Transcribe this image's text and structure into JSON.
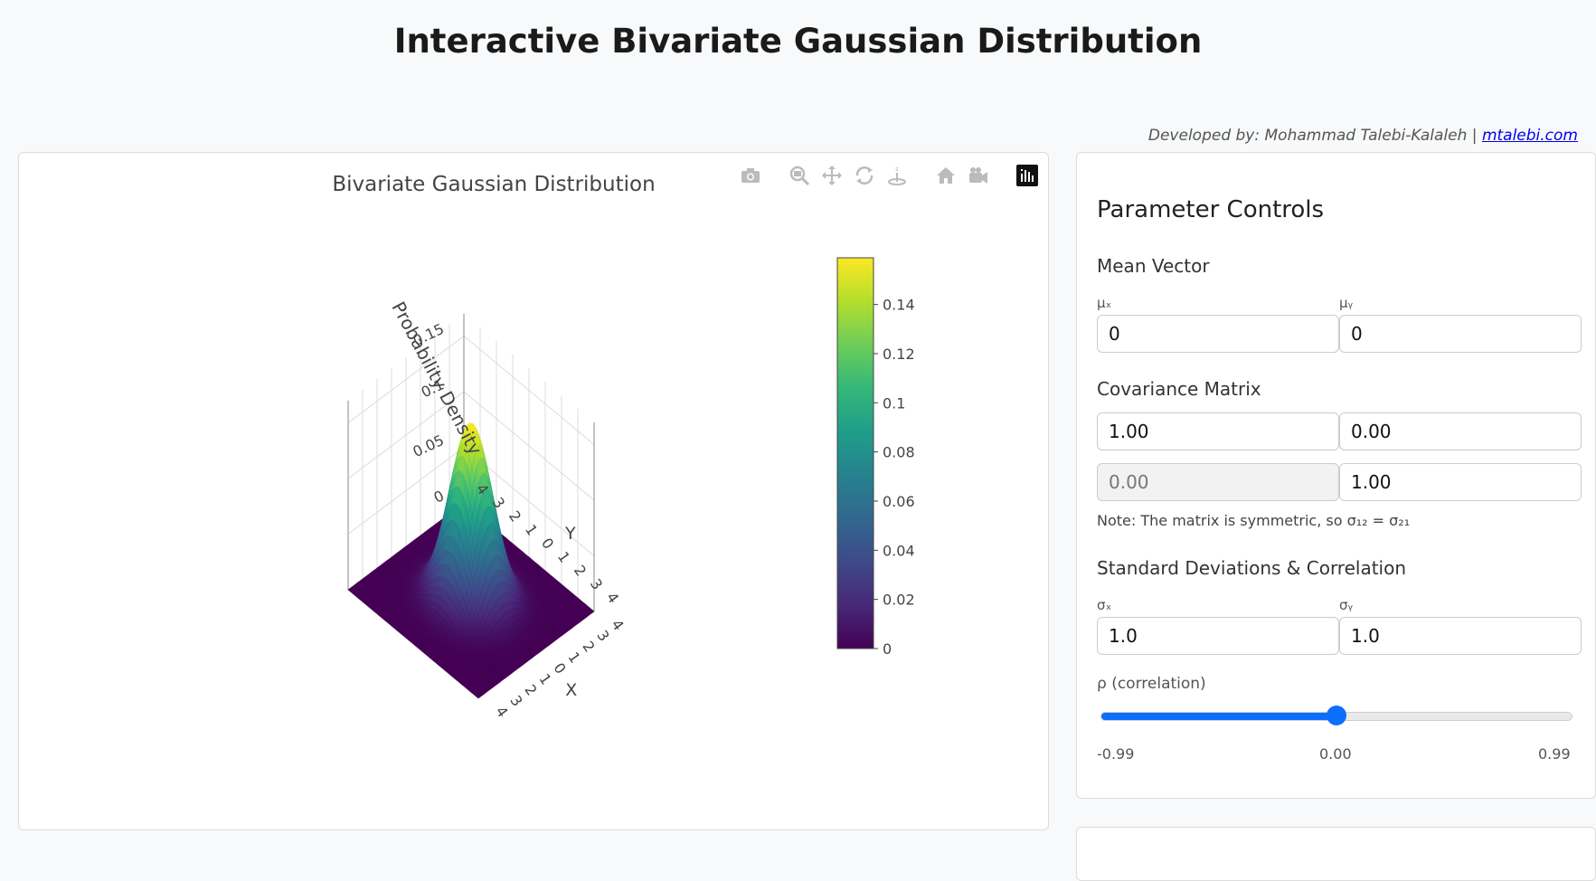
{
  "page": {
    "title": "Interactive Bivariate Gaussian Distribution",
    "credit_prefix": "Developed by: Mohammad Talebi-Kalaleh | ",
    "credit_link": "mtalebi.com"
  },
  "modebar": [
    "camera-icon",
    "zoom-icon",
    "pan-icon",
    "orbit-rotation-icon",
    "turntable-rotation-icon",
    "reset-home-icon",
    "reset-camera-icon",
    "plotly-logo-icon"
  ],
  "chart_data": {
    "type": "surface",
    "title": "Bivariate Gaussian Distribution",
    "xlabel": "X",
    "ylabel": "Y",
    "zlabel": "Probability Density",
    "x_ticks": [
      "−",
      "3",
      "2",
      "1",
      "0",
      "1",
      "2",
      "3",
      "4"
    ],
    "y_ticks": [
      "4",
      "3",
      "2",
      "1",
      "0",
      "1",
      "2",
      "3",
      "4"
    ],
    "z_ticks": [
      "0",
      "0.05",
      "0.1",
      "0.15"
    ],
    "xlim": [
      -4,
      4
    ],
    "ylim": [
      -4,
      4
    ],
    "peak_density": 0.159,
    "colorbar": {
      "ticks": [
        "0.14",
        "0.12",
        "0.1",
        "0.08",
        "0.06",
        "0.04",
        "0.02",
        "0"
      ],
      "range": [
        0,
        0.159
      ],
      "colorscale": "Viridis"
    },
    "parameters": {
      "mu_x": 0,
      "mu_y": 0,
      "sigma_x": 1.0,
      "sigma_y": 1.0,
      "rho": 0.0
    }
  },
  "panel": {
    "heading": "Parameter Controls",
    "mean_heading": "Mean Vector",
    "mu_x_label": "μₓ",
    "mu_y_label": "μᵧ",
    "mu_x": "0",
    "mu_y": "0",
    "cov_heading": "Covariance Matrix",
    "cov11": "1.00",
    "cov12": "0.00",
    "cov21": "0.00",
    "cov22": "1.00",
    "note": "Note: The matrix is symmetric, so σ₁₂ = σ₂₁",
    "sd_heading": "Standard Deviations & Correlation",
    "sigma_x_label": "σₓ",
    "sigma_y_label": "σᵧ",
    "sigma_x": "1.0",
    "sigma_y": "1.0",
    "rho_label": "ρ (correlation)",
    "rho_value": 0.0,
    "rho_min": "-0.99",
    "rho_mid": "0.00",
    "rho_max": "0.99"
  }
}
